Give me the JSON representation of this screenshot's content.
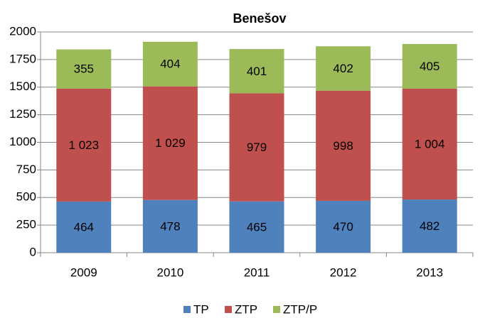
{
  "chart_data": {
    "type": "stacked_bar",
    "title": "Benešov",
    "categories": [
      "2009",
      "2010",
      "2011",
      "2012",
      "2013"
    ],
    "series": [
      {
        "name": "TP",
        "color": "#4f81bd",
        "values": [
          464,
          478,
          465,
          470,
          482
        ]
      },
      {
        "name": "ZTP",
        "color": "#c0504d",
        "values": [
          1023,
          1029,
          979,
          998,
          1004
        ],
        "value_labels": [
          "1 023",
          "1 029",
          "979",
          "998",
          "1 004"
        ]
      },
      {
        "name": "ZTP/P",
        "color": "#9bbb59",
        "values": [
          355,
          404,
          401,
          402,
          405
        ]
      }
    ],
    "ylim": [
      0,
      2000
    ],
    "yticks": [
      0,
      250,
      500,
      750,
      1000,
      1250,
      1500,
      1750,
      2000
    ],
    "grid": true,
    "legend": "bottom"
  }
}
